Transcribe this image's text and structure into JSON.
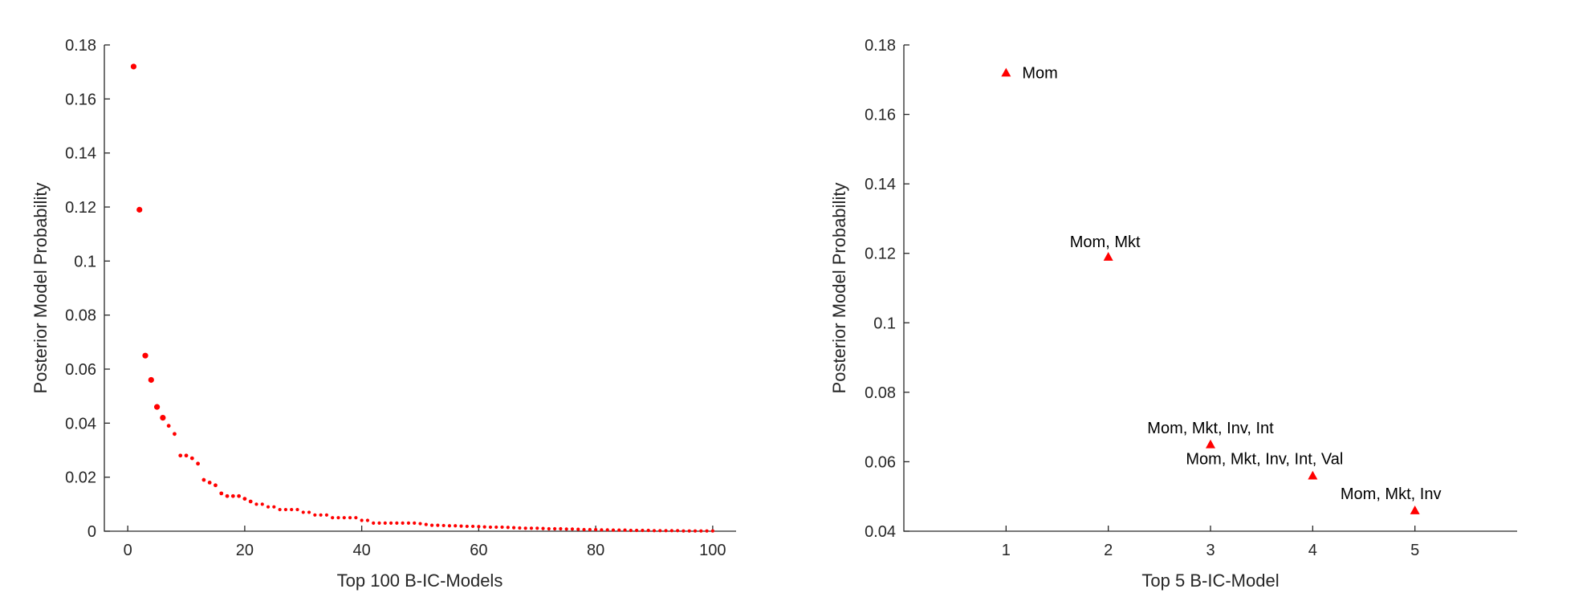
{
  "chart_data": [
    {
      "type": "scatter",
      "title": "",
      "xlabel": "Top 100 B-IC-Models",
      "ylabel": "Posterior Model Probability",
      "xlim": [
        -4,
        104
      ],
      "ylim": [
        0,
        0.18
      ],
      "xticks": [
        "0",
        "20",
        "40",
        "60",
        "80",
        "100"
      ],
      "yticks": [
        "0",
        "0.02",
        "0.04",
        "0.06",
        "0.08",
        "0.1",
        "0.12",
        "0.14",
        "0.16",
        "0.18"
      ],
      "marker": "dot",
      "color": "#ff0000",
      "grid": false,
      "x": [
        1,
        2,
        3,
        4,
        5,
        6,
        7,
        8,
        9,
        10,
        11,
        12,
        13,
        14,
        15,
        16,
        17,
        18,
        19,
        20,
        21,
        22,
        23,
        24,
        25,
        26,
        27,
        28,
        29,
        30,
        31,
        32,
        33,
        34,
        35,
        36,
        37,
        38,
        39,
        40,
        41,
        42,
        43,
        44,
        45,
        46,
        47,
        48,
        49,
        50,
        51,
        52,
        53,
        54,
        55,
        56,
        57,
        58,
        59,
        60,
        61,
        62,
        63,
        64,
        65,
        66,
        67,
        68,
        69,
        70,
        71,
        72,
        73,
        74,
        75,
        76,
        77,
        78,
        79,
        80,
        81,
        82,
        83,
        84,
        85,
        86,
        87,
        88,
        89,
        90,
        91,
        92,
        93,
        94,
        95,
        96,
        97,
        98,
        99,
        100
      ],
      "values": [
        0.172,
        0.119,
        0.065,
        0.056,
        0.046,
        0.042,
        0.039,
        0.036,
        0.028,
        0.028,
        0.027,
        0.025,
        0.019,
        0.018,
        0.017,
        0.014,
        0.013,
        0.013,
        0.013,
        0.012,
        0.011,
        0.01,
        0.01,
        0.009,
        0.009,
        0.008,
        0.008,
        0.008,
        0.008,
        0.007,
        0.007,
        0.006,
        0.006,
        0.006,
        0.005,
        0.005,
        0.005,
        0.005,
        0.005,
        0.004,
        0.004,
        0.003,
        0.003,
        0.003,
        0.003,
        0.003,
        0.003,
        0.003,
        0.003,
        0.0028,
        0.0025,
        0.0022,
        0.0022,
        0.0021,
        0.002,
        0.002,
        0.0019,
        0.0018,
        0.0018,
        0.0017,
        0.0016,
        0.0015,
        0.0015,
        0.0015,
        0.0014,
        0.0013,
        0.0012,
        0.0011,
        0.0011,
        0.0011,
        0.001,
        0.0009,
        0.0009,
        0.0009,
        0.0008,
        0.0008,
        0.0007,
        0.0006,
        0.0006,
        0.0006,
        0.0005,
        0.0005,
        0.0004,
        0.0004,
        0.0004,
        0.0003,
        0.0003,
        0.0003,
        0.0003,
        0.0002,
        0.0002,
        0.0002,
        0.0002,
        0.0002,
        0.0001,
        0.0001,
        0.0001,
        0.0001,
        0.0001,
        0.0001
      ]
    },
    {
      "type": "scatter",
      "title": "",
      "xlabel": "Top 5 B-IC-Model",
      "ylabel": "Posterior Model Probability",
      "xlim": [
        0,
        6
      ],
      "ylim": [
        0.04,
        0.18
      ],
      "xticks": [
        "1",
        "2",
        "3",
        "4",
        "5"
      ],
      "yticks": [
        "0.04",
        "0.06",
        "0.08",
        "0.1",
        "0.12",
        "0.14",
        "0.16",
        "0.18"
      ],
      "marker": "triangle",
      "color": "#ff0000",
      "grid": false,
      "x": [
        1,
        2,
        3,
        4,
        5
      ],
      "values": [
        0.172,
        0.119,
        0.065,
        0.056,
        0.046
      ],
      "annotations": [
        "Mom",
        "Mom, Mkt",
        "Mom, Mkt, Inv, Int",
        "Mom, Mkt, Inv, Int, Val",
        "Mom, Mkt, Inv"
      ]
    }
  ]
}
